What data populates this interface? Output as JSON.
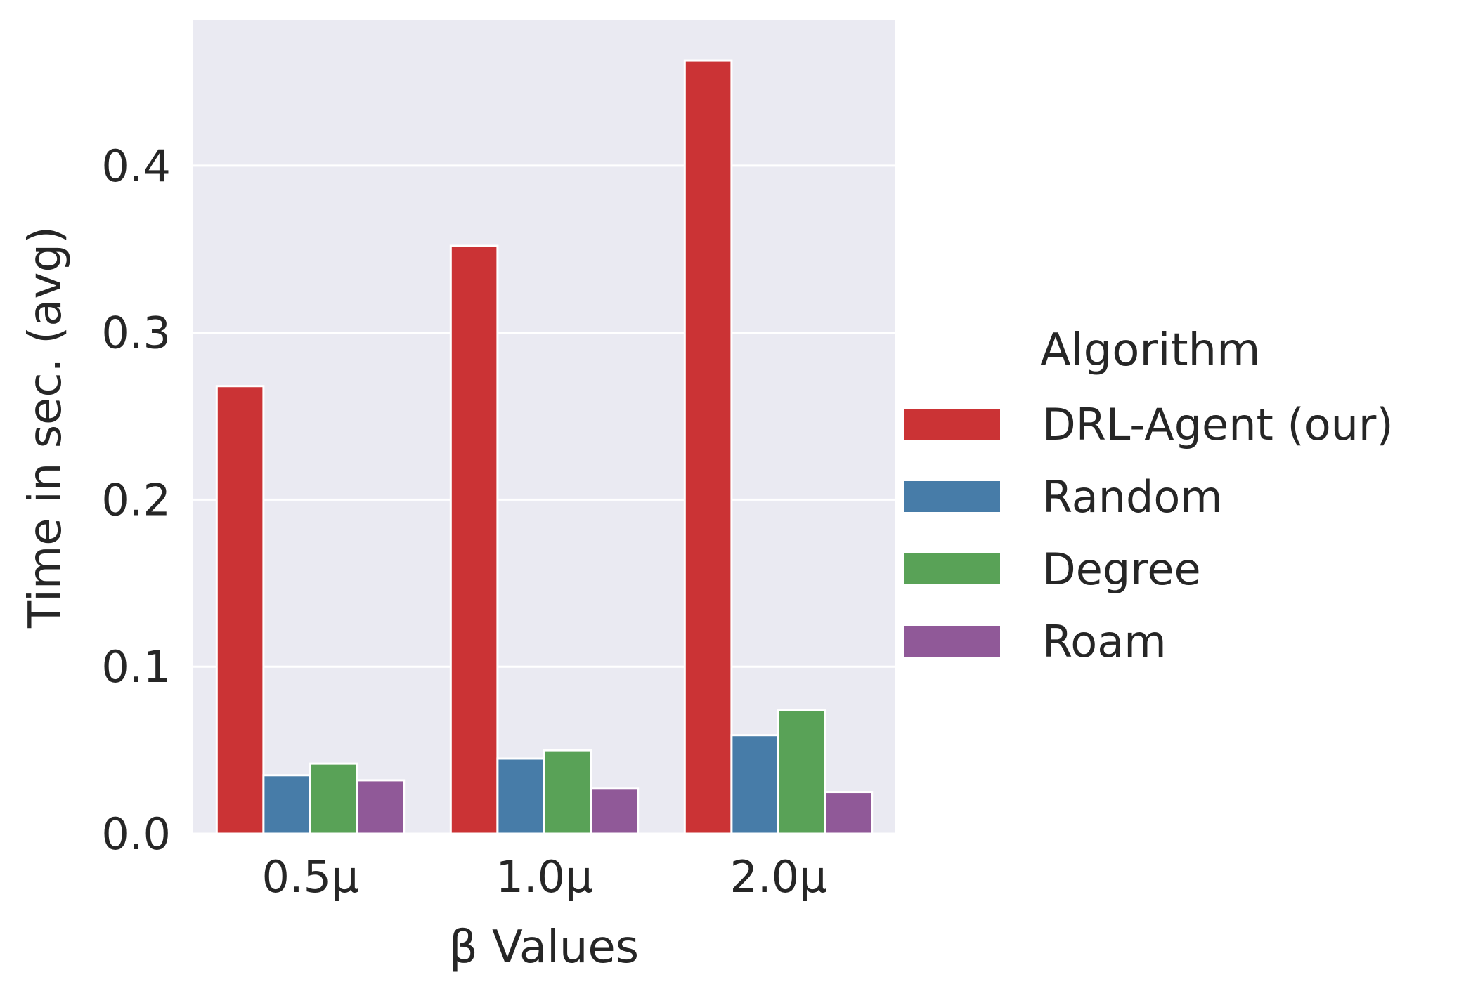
{
  "chart_data": {
    "type": "bar",
    "title": "",
    "xlabel": "β Values",
    "ylabel": "Time in sec. (avg)",
    "categories": [
      "0.5μ",
      "1.0μ",
      "2.0μ"
    ],
    "ylim": [
      0,
      0.487
    ],
    "yticks": [
      0.0,
      0.1,
      0.2,
      0.3,
      0.4
    ],
    "ytick_labels": [
      "0.0",
      "0.1",
      "0.2",
      "0.3",
      "0.4"
    ],
    "grid": true,
    "background": "#eaeaf2",
    "legend": {
      "title": "Algorithm",
      "placement": "right (outside)"
    },
    "series": [
      {
        "name": "DRL-Agent (our)",
        "color": "#cb3335",
        "values": [
          0.268,
          0.352,
          0.463
        ]
      },
      {
        "name": "Random",
        "color": "#477ca8",
        "values": [
          0.035,
          0.045,
          0.059
        ]
      },
      {
        "name": "Degree",
        "color": "#59a257",
        "values": [
          0.042,
          0.05,
          0.074
        ]
      },
      {
        "name": "Roam",
        "color": "#905998",
        "values": [
          0.032,
          0.027,
          0.025
        ]
      }
    ]
  }
}
